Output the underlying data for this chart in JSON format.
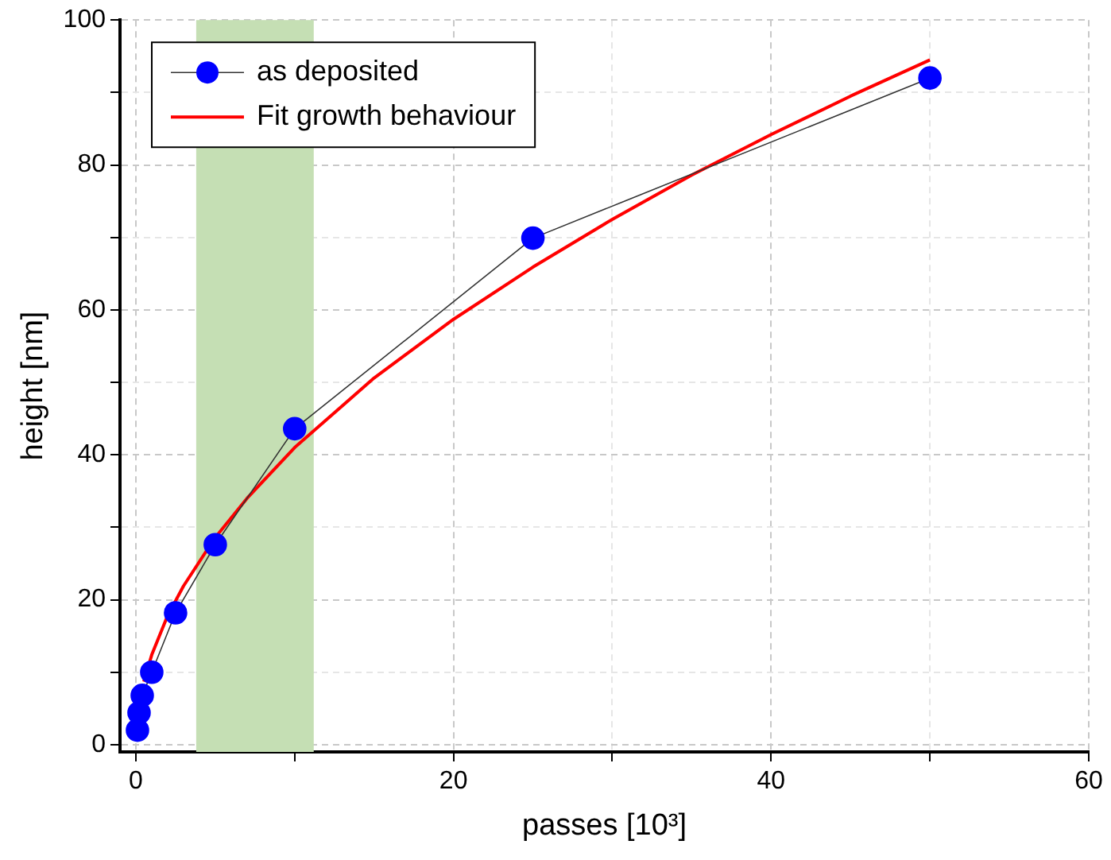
{
  "chart_data": {
    "type": "line",
    "xlabel": "passes [10³]",
    "ylabel": "height [nm]",
    "xlim": [
      -1,
      60
    ],
    "xticks": [
      0,
      {
        "value": 10,
        "label": null
      },
      20,
      {
        "value": 30,
        "label": null
      },
      40,
      {
        "value": 50,
        "label": null
      },
      60
    ],
    "ylim": [
      -1,
      100
    ],
    "yticks": [
      0,
      {
        "value": 10,
        "label": null
      },
      20,
      {
        "value": 30,
        "label": null
      },
      40,
      {
        "value": 50,
        "label": null
      },
      60,
      {
        "value": 70,
        "label": null
      },
      80,
      {
        "value": 90,
        "label": null
      },
      100
    ],
    "grid": true,
    "legend": "top left",
    "marker": "circle",
    "bands": [
      {
        "axis": "x",
        "from": 3.8,
        "to": 11.2,
        "color": "#c5dfb4"
      }
    ],
    "series": [
      {
        "name": "as deposited",
        "color": "#0000ff",
        "x": [
          0.1,
          0.2,
          0.4,
          1,
          2.5,
          5,
          10,
          25,
          50
        ],
        "values": [
          2,
          4.4,
          6.8,
          10,
          18.2,
          27.6,
          43.6,
          69.9,
          92
        ]
      },
      {
        "name": "Fit growth behaviour",
        "color": "#ff0000",
        "type": "line",
        "marker": "none",
        "x": [
          0.5,
          1,
          2,
          3,
          5,
          7,
          10,
          15,
          20,
          25,
          30,
          35,
          40,
          45,
          50
        ],
        "values": [
          8.7,
          12.4,
          17.8,
          21.9,
          28.6,
          34,
          41,
          50.6,
          58.7,
          65.9,
          72.5,
          78.6,
          84.2,
          89.5,
          94.5
        ]
      }
    ]
  }
}
